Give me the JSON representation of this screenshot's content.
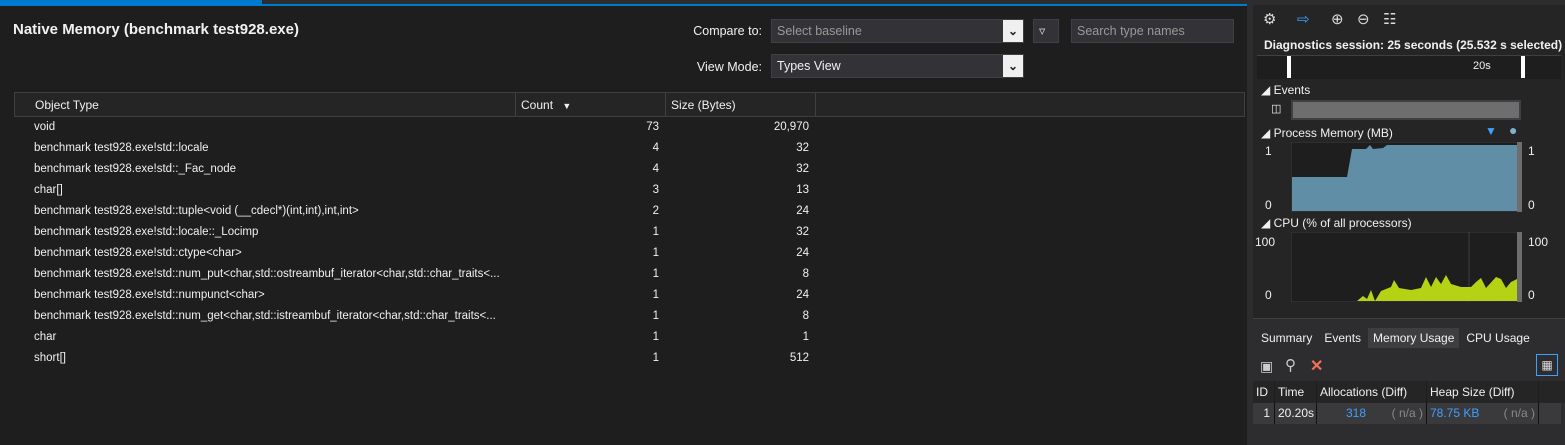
{
  "left": {
    "title": "Native Memory (benchmark test928.exe)",
    "compare_label": "Compare to:",
    "compare_placeholder": "Select baseline",
    "search_placeholder": "Search type names",
    "view_mode_label": "View Mode:",
    "view_mode_value": "Types View",
    "columns": [
      "Object Type",
      "Count",
      "Size (Bytes)"
    ],
    "sort_icon": "sort-descending-icon",
    "rows": [
      {
        "type": "void",
        "count": "73",
        "size": "20,970"
      },
      {
        "type": "benchmark test928.exe!std::locale",
        "count": "4",
        "size": "32"
      },
      {
        "type": "benchmark test928.exe!std::_Fac_node",
        "count": "4",
        "size": "32"
      },
      {
        "type": "char[]",
        "count": "3",
        "size": "13"
      },
      {
        "type": "benchmark test928.exe!std::tuple<void (__cdecl*)(int,int),int,int>",
        "count": "2",
        "size": "24"
      },
      {
        "type": "benchmark test928.exe!std::locale::_Locimp",
        "count": "1",
        "size": "32"
      },
      {
        "type": "benchmark test928.exe!std::ctype<char>",
        "count": "1",
        "size": "24"
      },
      {
        "type": "benchmark test928.exe!std::num_put<char,std::ostreambuf_iterator<char,std::char_traits<...",
        "count": "1",
        "size": "8"
      },
      {
        "type": "benchmark test928.exe!std::numpunct<char>",
        "count": "1",
        "size": "24"
      },
      {
        "type": "benchmark test928.exe!std::num_get<char,std::istreambuf_iterator<char,std::char_traits<...",
        "count": "1",
        "size": "8"
      },
      {
        "type": "char",
        "count": "1",
        "size": "1"
      },
      {
        "type": "short[]",
        "count": "1",
        "size": "512"
      }
    ]
  },
  "right": {
    "session": "Diagnostics session: 25 seconds (25.532 s selected)",
    "ruler_label": "20s",
    "events_label": "Events",
    "memory_label": "Process Memory (MB)",
    "memory_max": "1",
    "memory_min": "0",
    "cpu_label": "CPU (% of all processors)",
    "cpu_max": "100",
    "cpu_min": "0",
    "tabs": [
      "Summary",
      "Events",
      "Memory Usage",
      "CPU Usage"
    ],
    "active_tab": "Memory Usage",
    "snap_columns": [
      "ID",
      "Time",
      "Allocations (Diff)",
      "Heap Size (Diff)"
    ],
    "snapshot": {
      "id": "1",
      "time": "20.20s",
      "allocations": "318",
      "alloc_diff": "( n/a )",
      "heap": "78.75 KB",
      "heap_diff": "( n/a )"
    },
    "colors": {
      "memory": "#5f8ea6",
      "cpu": "#b5d214",
      "accent": "#007acc"
    }
  }
}
